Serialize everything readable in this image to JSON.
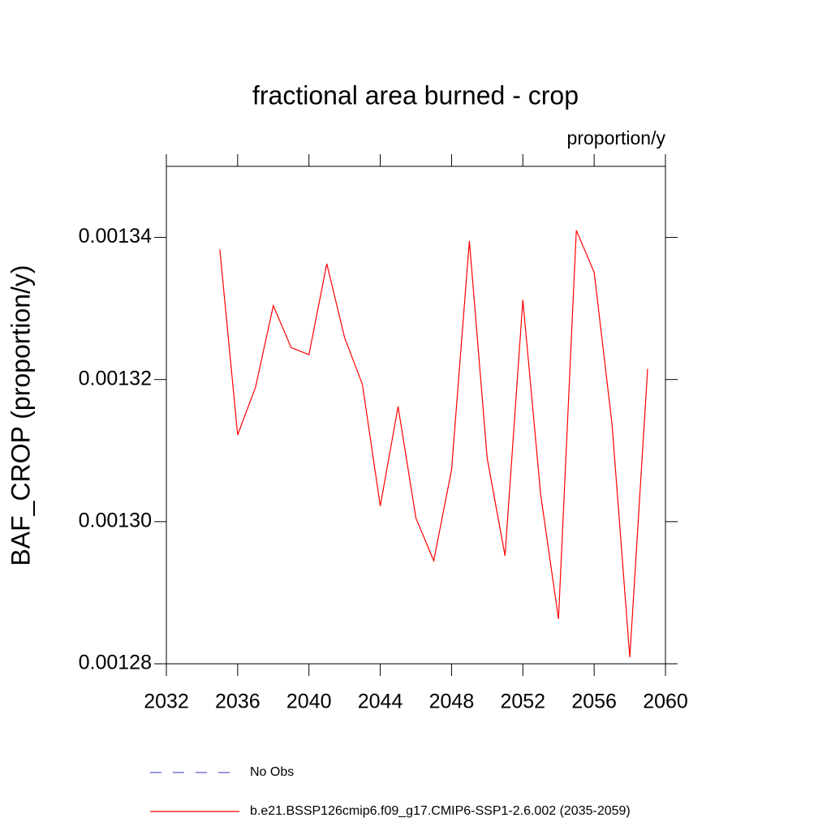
{
  "chart_data": {
    "type": "line",
    "title": "fractional area burned - crop",
    "subtitle": "proportion/y",
    "y_label": "BAF_CROP  (proportion/y)",
    "x": [
      2035,
      2036,
      2037,
      2038,
      2039,
      2040,
      2041,
      2042,
      2043,
      2044,
      2045,
      2046,
      2047,
      2048,
      2049,
      2050,
      2051,
      2052,
      2053,
      2054,
      2055,
      2056,
      2057,
      2058,
      2059
    ],
    "series": [
      {
        "name": "No Obs",
        "color": "#5a5acd",
        "dashed": true,
        "values": [
          null,
          null,
          null,
          null,
          null,
          null,
          null,
          null,
          null,
          null,
          null,
          null,
          null,
          null,
          null,
          null,
          null,
          null,
          null,
          null,
          null,
          null,
          null,
          null,
          null
        ]
      },
      {
        "name": "b.e21.BSSP126cmip6.f09_g17.CMIP6-SSP1-2.6.002 (2035-2059)",
        "color": "#ff0000",
        "dashed": false,
        "values": [
          0.0013383,
          0.0013122,
          0.0013189,
          0.0013304,
          0.0013245,
          0.0013235,
          0.0013363,
          0.0013259,
          0.0013193,
          0.0013022,
          0.0013162,
          0.0013005,
          0.0012945,
          0.0013073,
          0.0013395,
          0.0013089,
          0.0012952,
          0.0013312,
          0.0013038,
          0.0012863,
          0.001341,
          0.0013351,
          0.0013138,
          0.0012809,
          0.0013215
        ]
      }
    ],
    "xlim": [
      2032,
      2060
    ],
    "xticks": [
      2032,
      2036,
      2040,
      2044,
      2048,
      2052,
      2056,
      2060
    ],
    "ylim": [
      0.00128,
      0.00135
    ],
    "yticks": [
      0.00128,
      {
        "value": 0.0013,
        "label": "0.00130"
      },
      0.00132,
      0.00134
    ]
  }
}
